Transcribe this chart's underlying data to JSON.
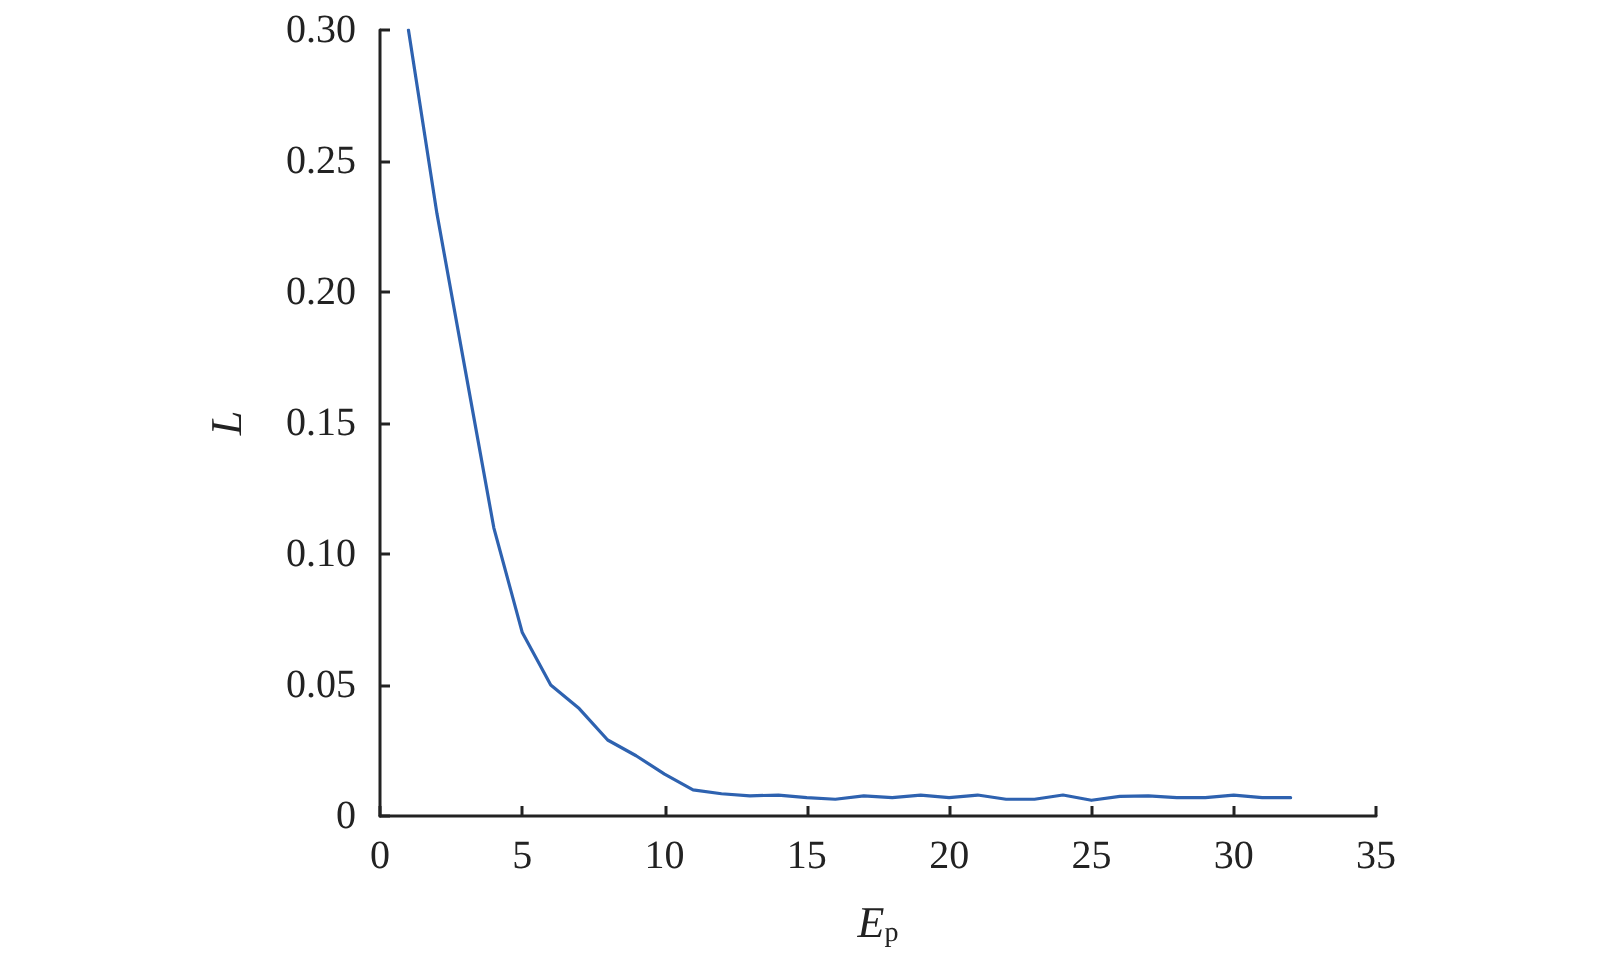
{
  "chart_data": {
    "type": "line",
    "xlabel": "E$_{p}$",
    "ylabel": "L",
    "x": [
      1,
      2,
      3,
      4,
      5,
      6,
      7,
      8,
      9,
      10,
      11,
      12,
      13,
      14,
      15,
      16,
      17,
      18,
      19,
      20,
      21,
      22,
      23,
      24,
      25,
      26,
      27,
      28,
      29,
      30,
      31,
      32
    ],
    "series": [
      {
        "color": "#2e62b0",
        "values": [
          0.3,
          0.23,
          0.17,
          0.11,
          0.07,
          0.05,
          0.041,
          0.029,
          0.023,
          0.016,
          0.01,
          0.0085,
          0.0077,
          0.008,
          0.007,
          0.0064,
          0.0077,
          0.007,
          0.008,
          0.007,
          0.008,
          0.0064,
          0.0064,
          0.008,
          0.006,
          0.0075,
          0.0077,
          0.007,
          0.007,
          0.008,
          0.007,
          0.007
        ]
      }
    ],
    "xlim": [
      0,
      35
    ],
    "xticks": [
      0,
      5,
      10,
      15,
      20,
      25,
      30,
      35
    ],
    "ylim": [
      0,
      0.3
    ],
    "yticks": [
      0,
      {
        "value": 0.05,
        "label": "0.05"
      },
      {
        "value": 0.1,
        "label": "0.10"
      },
      {
        "value": 0.15,
        "label": "0.15"
      },
      {
        "value": 0.2,
        "label": "0.20"
      },
      {
        "value": 0.25,
        "label": "0.25"
      },
      {
        "value": 0.3,
        "label": "0.30"
      }
    ],
    "grid": false,
    "marker": "none",
    "line_style": "solid"
  }
}
